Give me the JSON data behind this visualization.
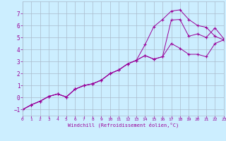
{
  "xlabel": "Windchill (Refroidissement éolien,°C)",
  "bg_color": "#cceeff",
  "line_color": "#990099",
  "grid_color": "#aabbcc",
  "xlim": [
    0,
    23
  ],
  "ylim": [
    -1.5,
    8.0
  ],
  "yticks": [
    -1,
    0,
    1,
    2,
    3,
    4,
    5,
    6,
    7
  ],
  "xticks": [
    0,
    1,
    2,
    3,
    4,
    5,
    6,
    7,
    8,
    9,
    10,
    11,
    12,
    13,
    14,
    15,
    16,
    17,
    18,
    19,
    20,
    21,
    22,
    23
  ],
  "line1_x": [
    0,
    1,
    2,
    3,
    4,
    5,
    6,
    7,
    8,
    9,
    10,
    11,
    12,
    13,
    14,
    15,
    16,
    17,
    18,
    19,
    20,
    21,
    22,
    23
  ],
  "line1_y": [
    -1.0,
    -0.6,
    -0.3,
    0.1,
    0.3,
    0.05,
    0.7,
    1.0,
    1.15,
    1.45,
    2.0,
    2.3,
    2.8,
    3.1,
    4.4,
    5.9,
    6.5,
    7.2,
    7.3,
    6.5,
    6.0,
    5.85,
    5.1,
    4.8
  ],
  "line2_x": [
    0,
    1,
    2,
    3,
    4,
    5,
    6,
    7,
    8,
    9,
    10,
    11,
    12,
    13,
    14,
    15,
    16,
    17,
    18,
    19,
    20,
    21,
    22,
    23
  ],
  "line2_y": [
    -1.0,
    -0.6,
    -0.3,
    0.1,
    0.3,
    0.05,
    0.7,
    1.0,
    1.15,
    1.45,
    2.0,
    2.3,
    2.8,
    3.1,
    3.5,
    3.2,
    3.4,
    6.45,
    6.5,
    5.1,
    5.3,
    5.0,
    5.8,
    4.9
  ],
  "line3_x": [
    0,
    1,
    2,
    3,
    4,
    5,
    6,
    7,
    8,
    9,
    10,
    11,
    12,
    13,
    14,
    15,
    16,
    17,
    18,
    19,
    20,
    21,
    22,
    23
  ],
  "line3_y": [
    -1.0,
    -0.6,
    -0.3,
    0.1,
    0.3,
    0.05,
    0.7,
    1.0,
    1.15,
    1.45,
    2.0,
    2.3,
    2.8,
    3.1,
    3.5,
    3.2,
    3.4,
    4.5,
    4.1,
    3.6,
    3.6,
    3.4,
    4.5,
    4.8
  ]
}
